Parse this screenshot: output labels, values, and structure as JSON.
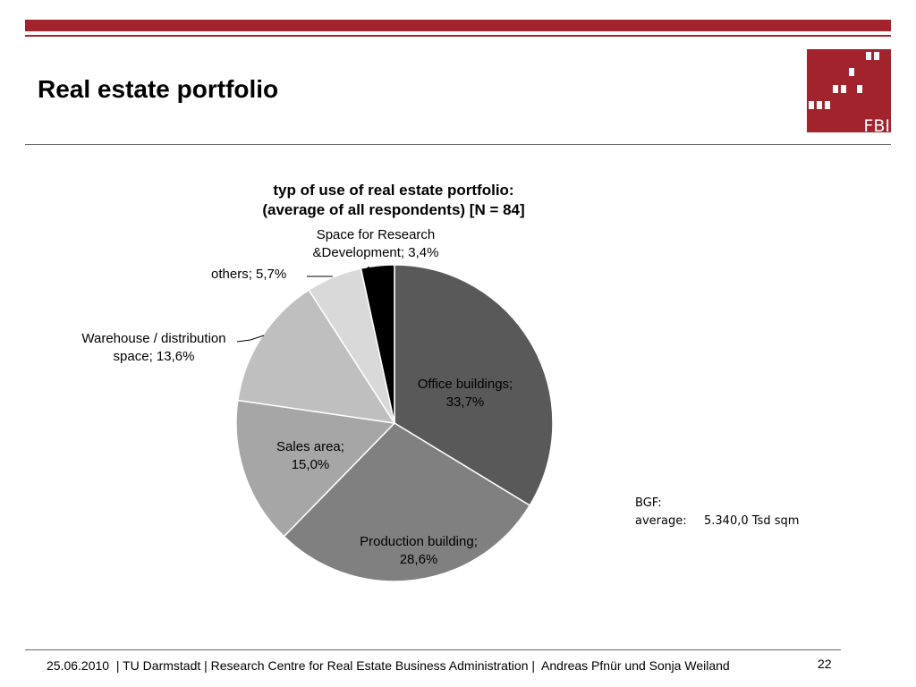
{
  "slide": {
    "title": "Real estate portfolio",
    "footer": "25.06.2010  | TU Darmstadt | Research Centre for Real Estate Business Administration |  Andreas Pfnür und Sonja Weiland",
    "page_number": "22",
    "brand_color": "#a3232c",
    "logo": {
      "text": "FBI"
    }
  },
  "chart_data": {
    "type": "pie",
    "title": "typ of use of real estate portfolio:",
    "subtitle": "(average of all respondents) [N = 84]",
    "slices": [
      {
        "label_line1": "Office buildings;",
        "label_line2": "33,7%",
        "value": 33.7,
        "color": "#595959"
      },
      {
        "label_line1": "Production building;",
        "label_line2": "28,6%",
        "value": 28.6,
        "color": "#808080"
      },
      {
        "label_line1": "Sales area;",
        "label_line2": "15,0%",
        "value": 15.0,
        "color": "#a6a6a6"
      },
      {
        "label_line1": "Warehouse / distribution",
        "label_line2": "space; 13,6%",
        "value": 13.6,
        "color": "#bfbfbf"
      },
      {
        "label_line1": "others; 5,7%",
        "label_line2": "",
        "value": 5.7,
        "color": "#d9d9d9"
      },
      {
        "label_line1": "Space for Research",
        "label_line2": "&Development; 3,4%",
        "value": 3.4,
        "color": "#000000"
      }
    ]
  },
  "bgf": {
    "heading": "BGF:",
    "key": "average:",
    "value": "5.340,0 Tsd sqm"
  }
}
